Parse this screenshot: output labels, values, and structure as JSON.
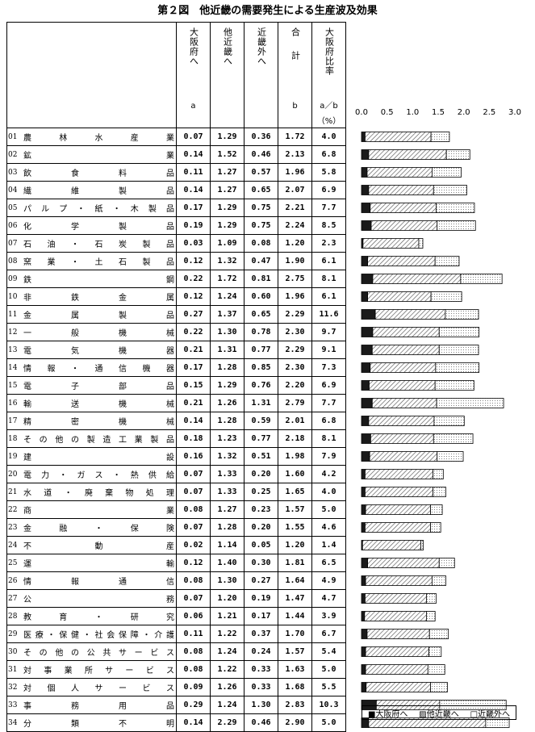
{
  "title": "第２図　他近畿の需要発生による生産波及効果",
  "headers": {
    "osaka": "大阪府へ",
    "osaka_sub": "a",
    "other_kinki": "他近畿へ",
    "outside": "近畿外へ",
    "total": "合計",
    "total_sub": "b",
    "ratio": "大阪府比率",
    "ratio_sub": "a／b",
    "ratio_unit": "（%）"
  },
  "chart_data": {
    "type": "bar",
    "orientation": "horizontal",
    "stacked": true,
    "xlim": [
      0,
      3.0
    ],
    "xticks": [
      "0.0",
      "0.5",
      "1.0",
      "1.5",
      "2.0",
      "2.5",
      "3.0"
    ],
    "colors": {
      "osaka": "#1a1a1a",
      "other_kinki": "hatch",
      "outside": "dotted"
    },
    "series": [
      {
        "name": "■大阪府へ",
        "key": "osaka"
      },
      {
        "name": "▨他近畿へ",
        "key": "other_kinki"
      },
      {
        "name": "□近畿外へ",
        "key": "outside"
      }
    ],
    "rows": [
      {
        "code": "01",
        "label": "農林水産業",
        "osaka": "0.07",
        "other": "1.29",
        "outside": "0.36",
        "total": "1.72",
        "ratio": "4.0"
      },
      {
        "code": "02",
        "label": "鉱業",
        "osaka": "0.14",
        "other": "1.52",
        "outside": "0.46",
        "total": "2.13",
        "ratio": "6.8"
      },
      {
        "code": "03",
        "label": "飲食料品",
        "osaka": "0.11",
        "other": "1.27",
        "outside": "0.57",
        "total": "1.96",
        "ratio": "5.8"
      },
      {
        "code": "04",
        "label": "繊維製品",
        "osaka": "0.14",
        "other": "1.27",
        "outside": "0.65",
        "total": "2.07",
        "ratio": "6.9"
      },
      {
        "code": "05",
        "label": "パルプ・紙・木製品",
        "osaka": "0.17",
        "other": "1.29",
        "outside": "0.75",
        "total": "2.21",
        "ratio": "7.7"
      },
      {
        "code": "06",
        "label": "化学製品",
        "osaka": "0.19",
        "other": "1.29",
        "outside": "0.75",
        "total": "2.24",
        "ratio": "8.5"
      },
      {
        "code": "07",
        "label": "石油・石炭製品",
        "osaka": "0.03",
        "other": "1.09",
        "outside": "0.08",
        "total": "1.20",
        "ratio": "2.3"
      },
      {
        "code": "08",
        "label": "窯業・土石製品",
        "osaka": "0.12",
        "other": "1.32",
        "outside": "0.47",
        "total": "1.90",
        "ratio": "6.1"
      },
      {
        "code": "09",
        "label": "鉄鋼",
        "osaka": "0.22",
        "other": "1.72",
        "outside": "0.81",
        "total": "2.75",
        "ratio": "8.1"
      },
      {
        "code": "10",
        "label": "非鉄金属",
        "osaka": "0.12",
        "other": "1.24",
        "outside": "0.60",
        "total": "1.96",
        "ratio": "6.1"
      },
      {
        "code": "11",
        "label": "金属製品",
        "osaka": "0.27",
        "other": "1.37",
        "outside": "0.65",
        "total": "2.29",
        "ratio": "11.6"
      },
      {
        "code": "12",
        "label": "一般機械",
        "osaka": "0.22",
        "other": "1.30",
        "outside": "0.78",
        "total": "2.30",
        "ratio": "9.7"
      },
      {
        "code": "13",
        "label": "電気機器",
        "osaka": "0.21",
        "other": "1.31",
        "outside": "0.77",
        "total": "2.29",
        "ratio": "9.1"
      },
      {
        "code": "14",
        "label": "情報・通信機器",
        "osaka": "0.17",
        "other": "1.28",
        "outside": "0.85",
        "total": "2.30",
        "ratio": "7.3"
      },
      {
        "code": "15",
        "label": "電子部品",
        "osaka": "0.15",
        "other": "1.29",
        "outside": "0.76",
        "total": "2.20",
        "ratio": "6.9"
      },
      {
        "code": "16",
        "label": "輸送機械",
        "osaka": "0.21",
        "other": "1.26",
        "outside": "1.31",
        "total": "2.79",
        "ratio": "7.7"
      },
      {
        "code": "17",
        "label": "精密機械",
        "osaka": "0.14",
        "other": "1.28",
        "outside": "0.59",
        "total": "2.01",
        "ratio": "6.8"
      },
      {
        "code": "18",
        "label": "その他の製造工業製品",
        "osaka": "0.18",
        "other": "1.23",
        "outside": "0.77",
        "total": "2.18",
        "ratio": "8.1"
      },
      {
        "code": "19",
        "label": "建設",
        "osaka": "0.16",
        "other": "1.32",
        "outside": "0.51",
        "total": "1.98",
        "ratio": "7.9"
      },
      {
        "code": "20",
        "label": "電力・ガス・熱供給",
        "osaka": "0.07",
        "other": "1.33",
        "outside": "0.20",
        "total": "1.60",
        "ratio": "4.2"
      },
      {
        "code": "21",
        "label": "水道・廃棄物処理",
        "osaka": "0.07",
        "other": "1.33",
        "outside": "0.25",
        "total": "1.65",
        "ratio": "4.0"
      },
      {
        "code": "22",
        "label": "商業",
        "osaka": "0.08",
        "other": "1.27",
        "outside": "0.23",
        "total": "1.57",
        "ratio": "5.0"
      },
      {
        "code": "23",
        "label": "金融・保険",
        "osaka": "0.07",
        "other": "1.28",
        "outside": "0.20",
        "total": "1.55",
        "ratio": "4.6"
      },
      {
        "code": "24",
        "label": "不動産",
        "osaka": "0.02",
        "other": "1.14",
        "outside": "0.05",
        "total": "1.20",
        "ratio": "1.4"
      },
      {
        "code": "25",
        "label": "運輸",
        "osaka": "0.12",
        "other": "1.40",
        "outside": "0.30",
        "total": "1.81",
        "ratio": "6.5"
      },
      {
        "code": "26",
        "label": "情報通信",
        "osaka": "0.08",
        "other": "1.30",
        "outside": "0.27",
        "total": "1.64",
        "ratio": "4.9"
      },
      {
        "code": "27",
        "label": "公務",
        "osaka": "0.07",
        "other": "1.20",
        "outside": "0.19",
        "total": "1.47",
        "ratio": "4.7"
      },
      {
        "code": "28",
        "label": "教育・研究",
        "osaka": "0.06",
        "other": "1.21",
        "outside": "0.17",
        "total": "1.44",
        "ratio": "3.9"
      },
      {
        "code": "29",
        "label": "医療・保健・社会保障・介護",
        "osaka": "0.11",
        "other": "1.22",
        "outside": "0.37",
        "total": "1.70",
        "ratio": "6.7"
      },
      {
        "code": "30",
        "label": "その他の公共サービス",
        "osaka": "0.08",
        "other": "1.24",
        "outside": "0.24",
        "total": "1.57",
        "ratio": "5.4"
      },
      {
        "code": "31",
        "label": "対事業所サービス",
        "osaka": "0.08",
        "other": "1.22",
        "outside": "0.33",
        "total": "1.63",
        "ratio": "5.0"
      },
      {
        "code": "32",
        "label": "対個人サービス",
        "osaka": "0.09",
        "other": "1.26",
        "outside": "0.33",
        "total": "1.68",
        "ratio": "5.5"
      },
      {
        "code": "33",
        "label": "事務用品",
        "osaka": "0.29",
        "other": "1.24",
        "outside": "1.30",
        "total": "2.83",
        "ratio": "10.3"
      },
      {
        "code": "34",
        "label": "分類不明",
        "osaka": "0.14",
        "other": "2.29",
        "outside": "0.46",
        "total": "2.90",
        "ratio": "5.0"
      }
    ]
  }
}
